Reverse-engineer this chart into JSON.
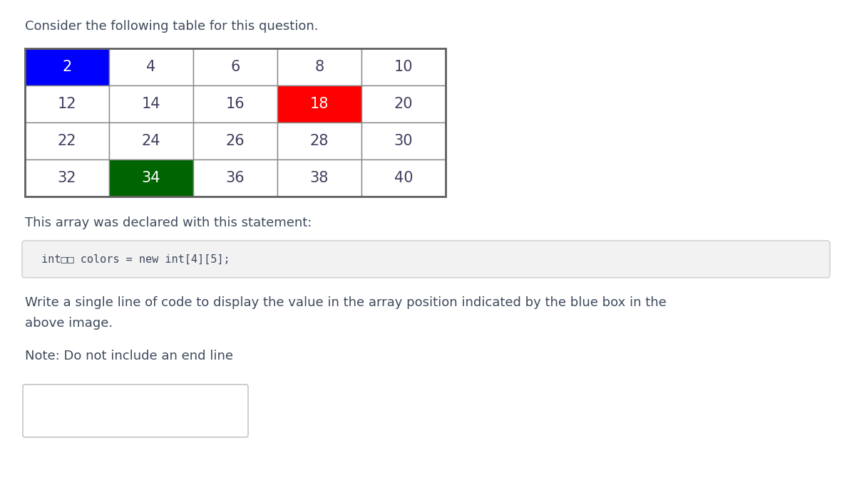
{
  "title": "Consider the following table for this question.",
  "table_data": [
    [
      2,
      4,
      6,
      8,
      10
    ],
    [
      12,
      14,
      16,
      18,
      20
    ],
    [
      22,
      24,
      26,
      28,
      30
    ],
    [
      32,
      34,
      36,
      38,
      40
    ]
  ],
  "cell_colors": [
    [
      "#0000FF",
      "#FFFFFF",
      "#FFFFFF",
      "#FFFFFF",
      "#FFFFFF"
    ],
    [
      "#FFFFFF",
      "#FFFFFF",
      "#FFFFFF",
      "#FF0000",
      "#FFFFFF"
    ],
    [
      "#FFFFFF",
      "#FFFFFF",
      "#FFFFFF",
      "#FFFFFF",
      "#FFFFFF"
    ],
    [
      "#FFFFFF",
      "#006400",
      "#FFFFFF",
      "#FFFFFF",
      "#FFFFFF"
    ]
  ],
  "text_colors": [
    [
      "#FFFFFF",
      "#404060",
      "#404060",
      "#404060",
      "#404060"
    ],
    [
      "#404060",
      "#404060",
      "#404060",
      "#FFFFFF",
      "#404060"
    ],
    [
      "#404060",
      "#404060",
      "#404060",
      "#404060",
      "#404060"
    ],
    [
      "#404060",
      "#FFFFFF",
      "#404060",
      "#404060",
      "#404060"
    ]
  ],
  "statement_label": "This array was declared with this statement:",
  "code_text": "int□□ colors = new int[4][5];",
  "question_text": "Write a single line of code to display the value in the array position indicated by the blue box in the\nabove image.",
  "note_text": "Note: Do not include an end line",
  "bg_color": "#FFFFFF",
  "text_color_main": "#3d4a5c",
  "code_bg": "#F2F2F2",
  "table_font_size": 15,
  "title_font_size": 13,
  "body_font_size": 13,
  "code_font_size": 11
}
